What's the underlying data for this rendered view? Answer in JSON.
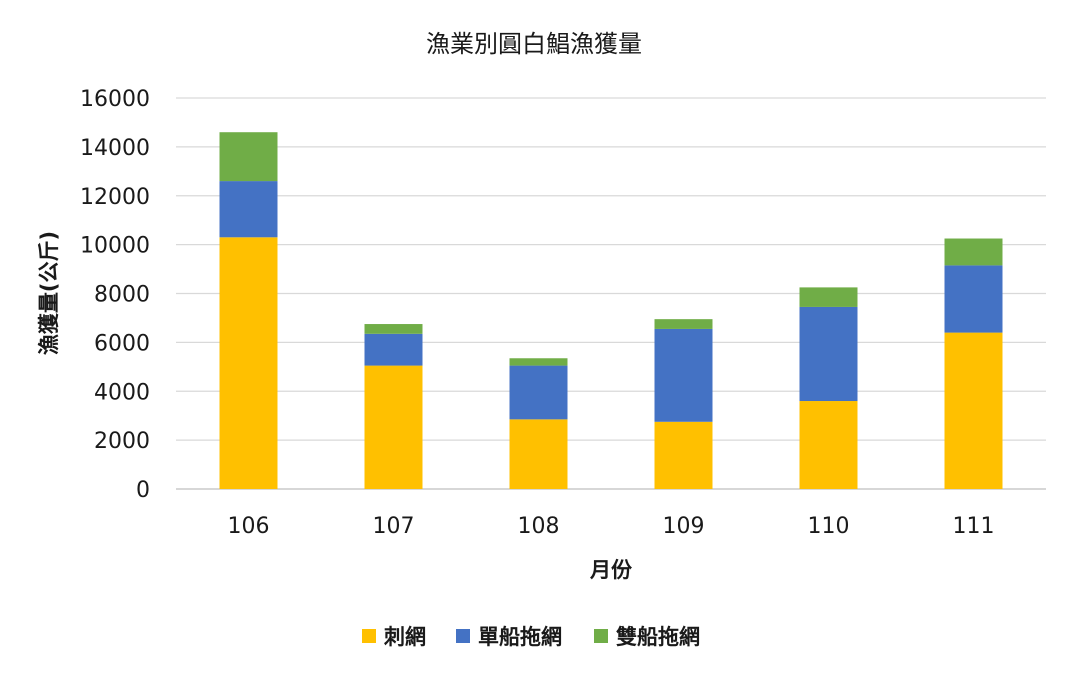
{
  "chart_data": {
    "type": "bar",
    "stacked": true,
    "title": "漁業別圓白鯧漁獲量",
    "xlabel": "月份",
    "ylabel": "漁獲量(公斤)",
    "categories": [
      "106",
      "107",
      "108",
      "109",
      "110",
      "111"
    ],
    "series": [
      {
        "name": "刺網",
        "color": "#ffc000",
        "values": [
          10300,
          5050,
          2850,
          2750,
          3600,
          6400
        ]
      },
      {
        "name": "單船拖網",
        "color": "#4472c4",
        "values": [
          2300,
          1300,
          2200,
          3800,
          3850,
          2750
        ]
      },
      {
        "name": "雙船拖網",
        "color": "#70ad47",
        "values": [
          2000,
          400,
          300,
          400,
          800,
          1100
        ]
      }
    ],
    "ylim": [
      0,
      16000
    ],
    "yticks": [
      0,
      2000,
      4000,
      6000,
      8000,
      10000,
      12000,
      14000,
      16000
    ],
    "grid": true,
    "legend": "bottom"
  }
}
